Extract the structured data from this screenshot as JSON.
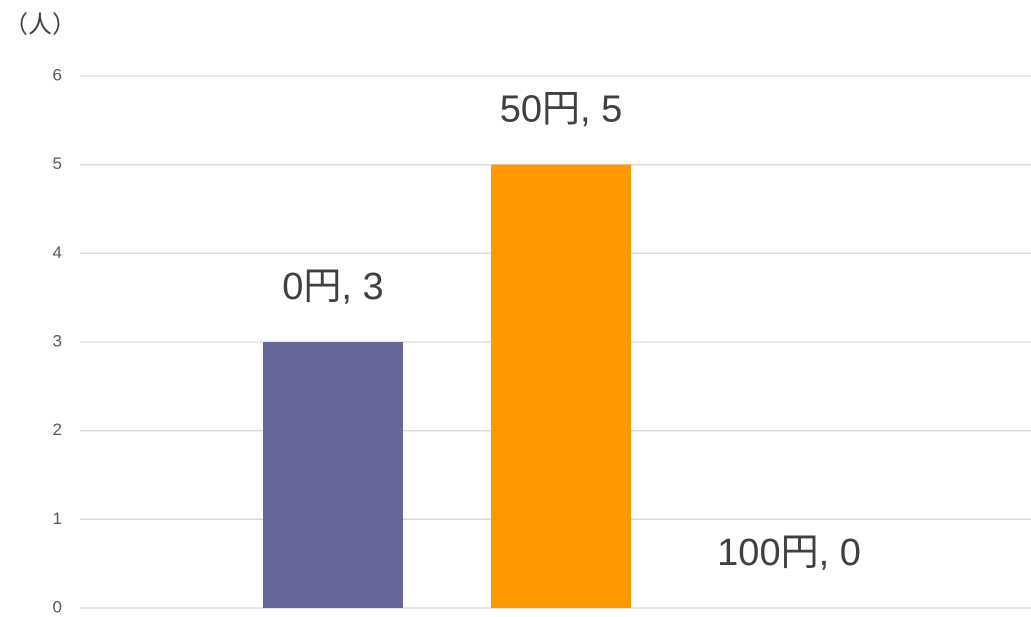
{
  "chart_data": {
    "type": "bar",
    "ylabel": "（人）",
    "categories": [
      null
    ],
    "series": [
      {
        "name": "0円",
        "color": "#666699",
        "values": [
          3
        ],
        "value_labels": [
          "0円, 3"
        ]
      },
      {
        "name": "50円",
        "color": "#ff9900",
        "values": [
          5
        ],
        "value_labels": [
          "50円, 5"
        ]
      },
      {
        "name": "100円",
        "values": [
          0
        ],
        "value_labels": [
          "100円, 0"
        ]
      }
    ],
    "ylim": [
      0,
      6
    ],
    "yticks": [
      0,
      1,
      2,
      3,
      4,
      5,
      6
    ],
    "grid": true
  }
}
